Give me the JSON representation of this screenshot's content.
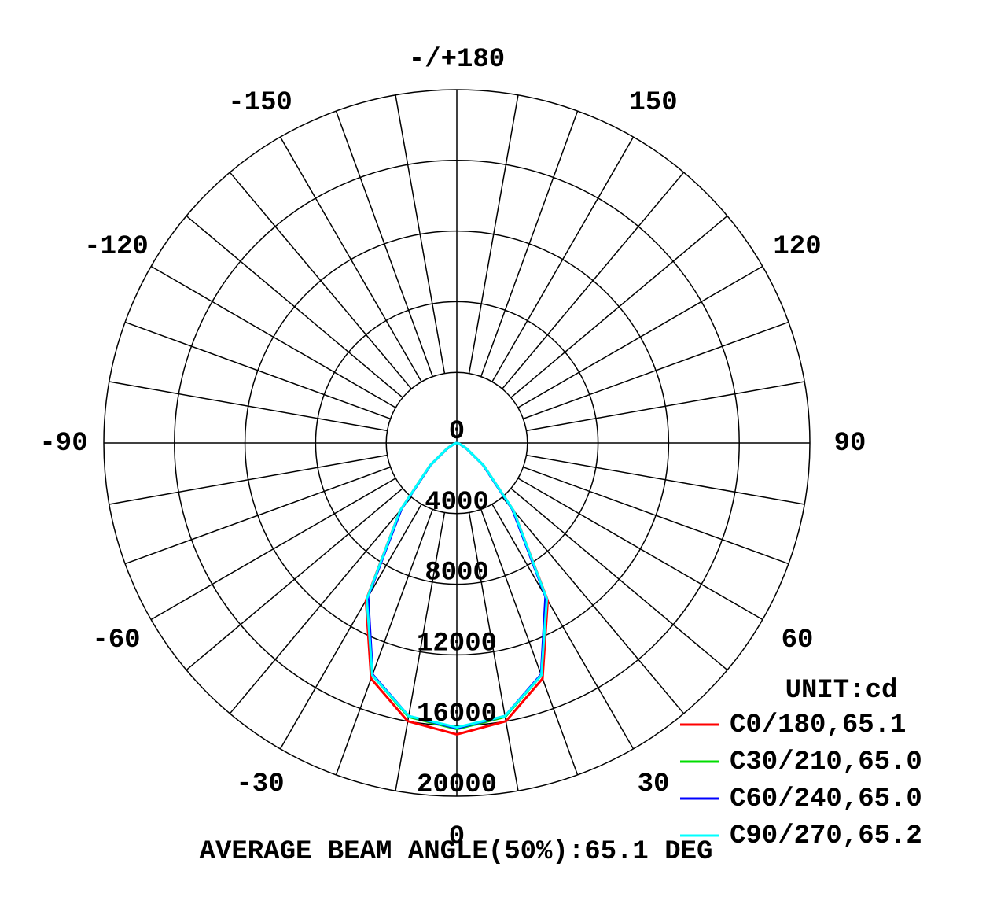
{
  "chart_data": {
    "type": "polar",
    "footer": "AVERAGE BEAM ANGLE(50%):65.1 DEG",
    "legend_title": "UNIT:cd",
    "legend": "lower-right",
    "rlim": [
      0,
      20000
    ],
    "rticks": [
      0,
      4000,
      8000,
      12000,
      16000,
      20000
    ],
    "thetaticks": [
      0,
      30,
      60,
      90,
      120,
      150,
      {
        "value": 180,
        "label": "-/+180"
      },
      -150,
      -120,
      -90,
      -60,
      -30
    ],
    "theta": [
      -90,
      -80,
      -70,
      -60,
      -50,
      -40,
      -30,
      -20,
      -10,
      0,
      10,
      20,
      30,
      40,
      50,
      60,
      70,
      80,
      90
    ],
    "series": [
      {
        "name": "C0/180,65.1",
        "color": "#ff0000",
        "values": [
          0,
          50,
          200,
          650,
          2000,
          5000,
          10300,
          14200,
          16000,
          16500,
          16000,
          14200,
          10300,
          5000,
          2000,
          650,
          200,
          50,
          0
        ]
      },
      {
        "name": "C30/210,65.0",
        "color": "#00dd00",
        "values": [
          0,
          50,
          190,
          640,
          1950,
          4900,
          10100,
          14000,
          15750,
          16200,
          15750,
          14000,
          10100,
          4900,
          1950,
          640,
          190,
          50,
          0
        ]
      },
      {
        "name": "C60/240,65.0",
        "color": "#0000ff",
        "values": [
          0,
          50,
          190,
          630,
          1940,
          4880,
          10050,
          13950,
          15700,
          16150,
          15700,
          13950,
          10050,
          4880,
          1940,
          630,
          190,
          50,
          0
        ]
      },
      {
        "name": "C90/270,65.2",
        "color": "#00ffff",
        "values": [
          0,
          50,
          200,
          660,
          2000,
          5000,
          10200,
          14000,
          15700,
          16100,
          15700,
          14000,
          10200,
          5000,
          2000,
          660,
          200,
          50,
          0
        ]
      }
    ]
  }
}
